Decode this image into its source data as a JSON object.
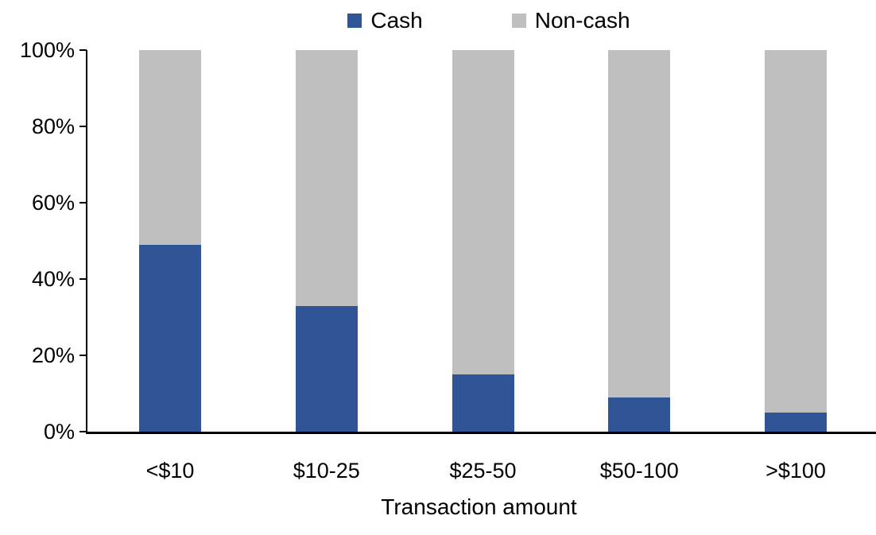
{
  "chart_data": {
    "type": "bar",
    "variant": "stacked-100-percent",
    "title": "",
    "xlabel": "Transaction amount",
    "ylabel": "",
    "categories": [
      "<$10",
      "$10-25",
      "$25-50",
      "$50-100",
      ">$100"
    ],
    "series": [
      {
        "name": "Cash",
        "color": "#2F5597",
        "values": [
          49,
          33,
          15,
          9,
          5
        ]
      },
      {
        "name": "Non-cash",
        "color": "#BFBFBF",
        "values": [
          51,
          67,
          85,
          91,
          95
        ]
      }
    ],
    "y_ticks": [
      "0%",
      "20%",
      "40%",
      "60%",
      "80%",
      "100%"
    ],
    "ylim": [
      0,
      100
    ],
    "legend_position": "top",
    "grid": false,
    "axis_color": "#000000",
    "text_color": "#000000",
    "background_color": "#FFFFFF"
  }
}
